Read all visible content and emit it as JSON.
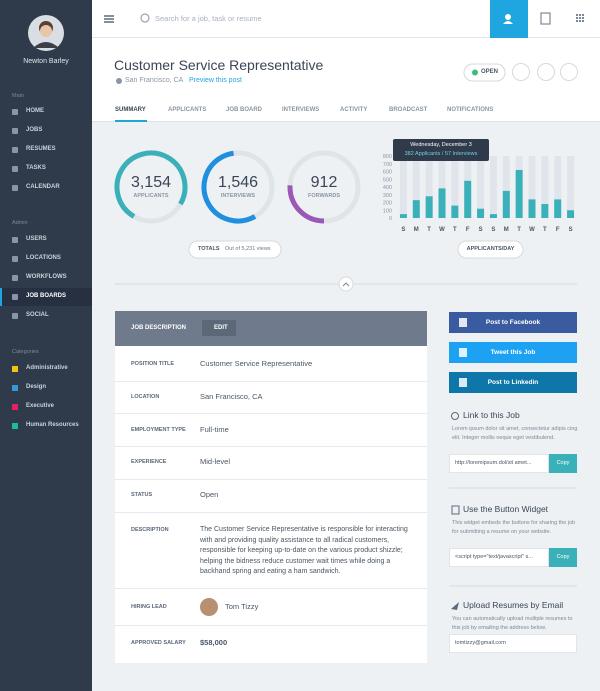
{
  "sidebar": {
    "user": "Newton Barley",
    "sections": [
      {
        "title": "Main",
        "items": [
          "HOME",
          "JOBS",
          "RESUMES",
          "TASKS",
          "CALENDAR"
        ]
      },
      {
        "title": "Admin",
        "items": [
          "USERS",
          "LOCATIONS",
          "WORKFLOWS",
          "JOB BOARDS",
          "SOCIAL"
        ]
      },
      {
        "title": "Categories",
        "items": [
          "Administrative",
          "Design",
          "Executive",
          "Human Resources"
        ]
      }
    ]
  },
  "search_placeholder": "Search for a job, task or resume",
  "header": {
    "title": "Customer Service Representative",
    "location": "San Francisco, CA",
    "preview": "Preview this post",
    "status": "OPEN"
  },
  "tabs": [
    "SUMMARY",
    "APPLICANTS",
    "JOB BOARD",
    "INTERVIEWS",
    "ACTIVITY",
    "BROADCAST",
    "NOTIFICATIONS"
  ],
  "stats": [
    {
      "value": "3,154",
      "label": "APPLICANTS"
    },
    {
      "value": "1,546",
      "label": "INTERVIEWS"
    },
    {
      "value": "912",
      "label": "FORWARDS"
    }
  ],
  "totals": {
    "label": "TOTALS",
    "detail": "Out of 5,231 views"
  },
  "chart_data": {
    "type": "bar",
    "categories": [
      "S",
      "M",
      "T",
      "W",
      "T",
      "F",
      "S",
      "S",
      "M",
      "T",
      "W",
      "T",
      "F",
      "S"
    ],
    "values": [
      50,
      230,
      280,
      382,
      160,
      480,
      120,
      50,
      350,
      620,
      240,
      180,
      240,
      100
    ],
    "color": "#3ab0b8",
    "ylim": [
      0,
      800
    ],
    "yticks": [
      0,
      100,
      200,
      300,
      400,
      500,
      600,
      700,
      800
    ],
    "caption": "APPLICANTS/DAY",
    "tooltip": {
      "title": "Wednesday, December 3",
      "text": "382 Applicants / 57 Interviews"
    }
  },
  "job": {
    "title": "JOB DESCRIPTION",
    "edit": "EDIT",
    "rows": [
      {
        "label": "POSITION TITLE",
        "value": "Customer Service Representative"
      },
      {
        "label": "LOCATION",
        "value": "San Francisco, CA"
      },
      {
        "label": "EMPLOYMENT TYPE",
        "value": "Full-time"
      },
      {
        "label": "EXPERIENCE",
        "value": "Mid-level"
      },
      {
        "label": "STATUS",
        "value": "Open"
      },
      {
        "label": "DESCRIPTION",
        "value": "The Customer Service Representative is responsible for interacting with and providing quality assistance to all radical customers, responsible for keeping up-to-date on the various product shizzle; helping the bidness reduce customer wait times while doing a backhand spring and eating a ham sandwich."
      },
      {
        "label": "HIRING LEAD",
        "value": "Tom Tizzy"
      },
      {
        "label": "APPROVED SALARY",
        "value": "$58,000"
      }
    ]
  },
  "share": [
    "Post to Facebook",
    "Tweet this Job",
    "Post to Linkedin"
  ],
  "widgets": [
    {
      "title": "Link to this Job",
      "text": "Lorem ipsum dolor sit amet, consectetur adipis cing elit. Integer mollis neque eget vestibulend.",
      "field": "http://loremipsum.dol/sit amet...",
      "button": "Copy"
    },
    {
      "title": "Use the Button Widget",
      "text": "This widget embeds the buttons for sharing the job for submitting a resume on your website.",
      "field": "<script type=\"text/javascript\" s...",
      "button": "Copy"
    },
    {
      "title": "Upload Resumes by Email",
      "text": "You can automatically upload multiple resumes to this job by emailing the address below.",
      "field": "tomtizzy@gmail.com"
    }
  ]
}
